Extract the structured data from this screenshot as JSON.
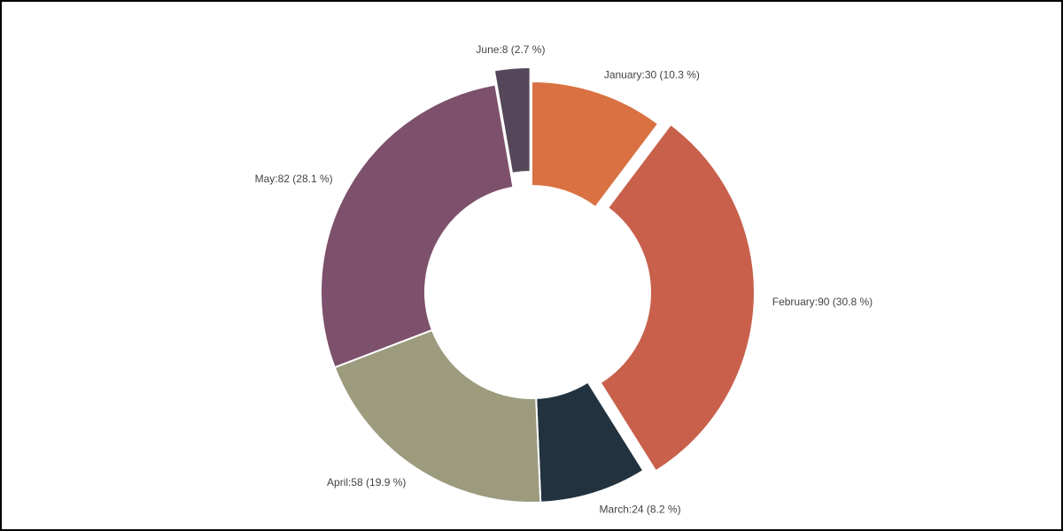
{
  "chart_data": {
    "type": "donut",
    "categories": [
      "January",
      "February",
      "March",
      "April",
      "May",
      "June"
    ],
    "values": [
      30,
      90,
      24,
      58,
      82,
      8
    ],
    "value_labels": [
      "January:30 (10.3 %)",
      "February:90 (30.8 %)",
      "March:24 (8.2 %)",
      "April:58 (19.9 %)",
      "May:82 (28.1 %)",
      "June:8 (2.7 %)"
    ],
    "colors": [
      "#d97142",
      "#c8604c",
      "#22323e",
      "#9c9b7e",
      "#7d506c",
      "#55475a"
    ]
  }
}
